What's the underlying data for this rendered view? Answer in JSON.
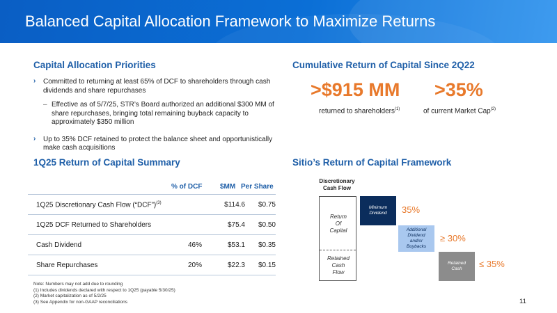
{
  "header": {
    "title": "Balanced Capital Allocation Framework to Maximize Returns"
  },
  "priorities": {
    "title": "Capital Allocation Priorities",
    "bullet1": "Committed to returning at least 65% of DCF to shareholders through cash dividends and share repurchases",
    "subbullet1": "Effective as of 5/7/25, STR’s Board authorized an additional $300 MM of share repurchases, bringing total remaining buyback capacity to approximately $350 million",
    "bullet2": "Up to 35% DCF retained to protect the balance sheet and opportunistically make cash acquisitions",
    "bullet_marker": "›",
    "sub_marker": "–"
  },
  "cumulative": {
    "title": "Cumulative Return of Capital Since 2Q22",
    "stat1_value": ">$915 MM",
    "stat1_label": "returned to shareholders",
    "stat1_note": "(1)",
    "stat2_value": ">35%",
    "stat2_label": "of current Market Cap",
    "stat2_note": "(2)"
  },
  "summary": {
    "title": "1Q25 Return of Capital Summary",
    "headers": {
      "pct": "% of DCF",
      "mm": "$MM",
      "per_share": "Per Share"
    },
    "rows": [
      {
        "label": "1Q25 Discretionary Cash Flow (“DCF”)",
        "note": "(3)",
        "pct": "",
        "mm": "$114.6",
        "per_share": "$0.75"
      },
      {
        "label": "1Q25 DCF Returned to Shareholders",
        "note": "",
        "pct": "",
        "mm": "$75.4",
        "per_share": "$0.50"
      },
      {
        "label": "Cash Dividend",
        "note": "",
        "pct": "46%",
        "mm": "$53.1",
        "per_share": "$0.35"
      },
      {
        "label": "Share Repurchases",
        "note": "",
        "pct": "20%",
        "mm": "$22.3",
        "per_share": "$0.15"
      }
    ]
  },
  "framework": {
    "title": "Sitio’s Return of Capital Framework",
    "dcf_label_1": "Discretionary",
    "dcf_label_2": "Cash Flow",
    "return_label_1": "Return",
    "return_label_2": "Of",
    "return_label_3": "Capital",
    "retained_label_1": "Retained",
    "retained_label_2": "Cash",
    "retained_label_3": "Flow",
    "block1_1": "Minimum",
    "block1_2": "Dividend",
    "block1_pct": "35%",
    "block2_1": "Additional",
    "block2_2": "Dividend",
    "block2_3": "and/or",
    "block2_4": "Buybacks",
    "block2_pct": "≥ 30%",
    "block3_1": "Retained",
    "block3_2": "Cash",
    "block3_pct": "≤ 35%",
    "colors": {
      "dark": "#0b2d5c",
      "light": "#a9c8ef",
      "gray": "#8c8c8c",
      "accent": "#e8792b"
    }
  },
  "notes": [
    "Note: Numbers may not add due to rounding",
    "(1) Includes dividends declared with respect to 1Q25 (payable 5/30/25)",
    "(2) Market capitalization as of 5/2/25",
    "(3) See Appendix for non-GAAP reconciliations"
  ],
  "page_number": "11"
}
